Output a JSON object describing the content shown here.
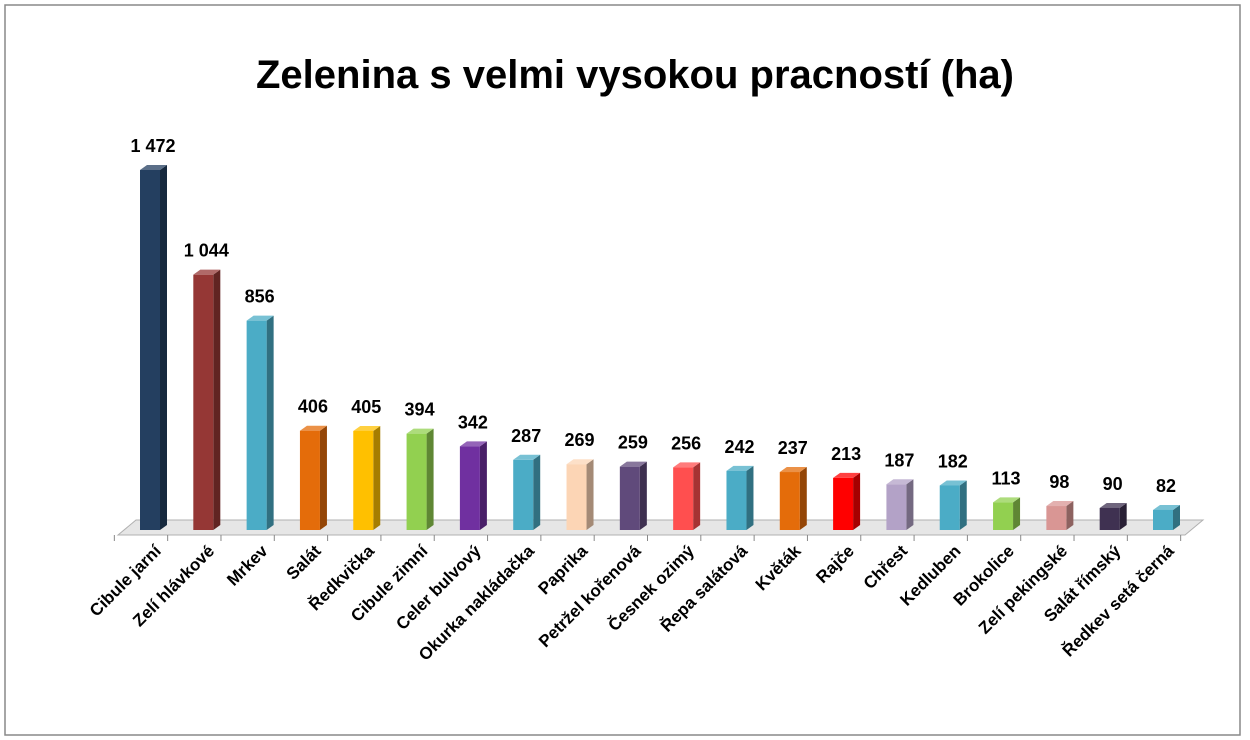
{
  "chart_data": {
    "type": "bar3d",
    "title": "Zelenina s velmi vysokou pracností (ha)",
    "categories": [
      "Cibule jarní",
      "Zelí hlávkové",
      "Mrkev",
      "Salát",
      "Ředkvička",
      "Cibule zimní",
      "Celer bulvový",
      "Okurka nakládačka",
      "Paprika",
      "Petržel kořenová",
      "Česnek ozimý",
      "Řepa salátová",
      "Květák",
      "Rajče",
      "Chřest",
      "Kedluben",
      "Brokolice",
      "Zelí pekingské",
      "Salát římský",
      "Ředkev setá černá"
    ],
    "values": [
      1472,
      1044,
      856,
      406,
      405,
      394,
      342,
      287,
      269,
      259,
      256,
      242,
      237,
      213,
      187,
      182,
      113,
      98,
      90,
      82
    ],
    "value_labels": [
      "1 472",
      "1 044",
      "856",
      "406",
      "405",
      "394",
      "342",
      "287",
      "269",
      "259",
      "256",
      "242",
      "237",
      "213",
      "187",
      "182",
      "113",
      "98",
      "90",
      "82"
    ],
    "colors": [
      "#243f60",
      "#953735",
      "#4bacc6",
      "#e46c0a",
      "#ffc000",
      "#92d050",
      "#7030a0",
      "#4bacc6",
      "#fcd5b5",
      "#604a7b",
      "#ff4f4f",
      "#4bacc6",
      "#e46c0a",
      "#ff0000",
      "#b3a2c7",
      "#4bacc6",
      "#92d050",
      "#d99694",
      "#3f3151",
      "#4bacc6"
    ]
  }
}
